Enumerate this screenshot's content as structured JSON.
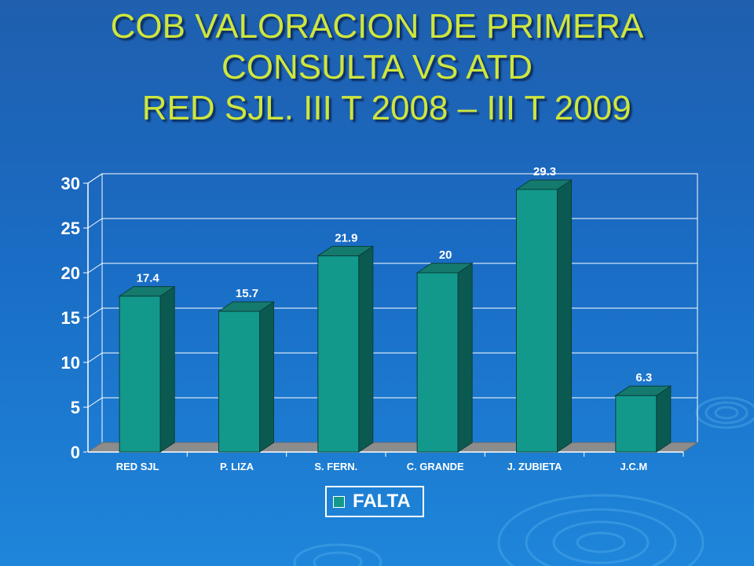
{
  "slide": {
    "title_lines": [
      "COB VALORACION DE PRIMERA",
      "CONSULTA VS ATD",
      "  RED SJL. III T 2008 – III T 2009"
    ]
  },
  "chart_data": {
    "type": "bar",
    "categories": [
      "RED SJL",
      "P. LIZA",
      "S. FERN.",
      "C. GRANDE",
      "J. ZUBIETA",
      "J.C.M"
    ],
    "series": [
      {
        "name": "FALTA",
        "values": [
          17.4,
          15.7,
          21.9,
          20,
          29.3,
          6.3
        ]
      }
    ],
    "data_labels": [
      "17.4",
      "15.7",
      "21.9",
      "20",
      "29.3",
      "6.3"
    ],
    "yticks": [
      "0",
      "5",
      "10",
      "15",
      "20",
      "25",
      "30"
    ],
    "ylim": [
      0,
      30
    ],
    "xlabel": "",
    "ylabel": "",
    "grid": true,
    "legend_position": "bottom",
    "style": "3d-column",
    "colors": {
      "bar_front": "#12998c",
      "bar_side": "#0b5a52",
      "bar_top": "#147a6e",
      "floor": "#8c8c8c",
      "axis": "#ffffff"
    }
  },
  "legend": {
    "label": "FALTA"
  }
}
